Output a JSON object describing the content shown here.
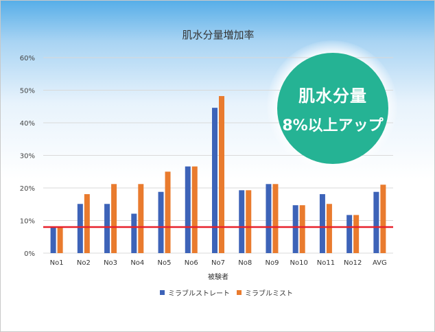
{
  "chart_data": {
    "type": "bar",
    "title": "肌水分量増加率",
    "xlabel": "被験者",
    "ylabel": "",
    "categories": [
      "No1",
      "No2",
      "No3",
      "No4",
      "No5",
      "No6",
      "No7",
      "No8",
      "No9",
      "No10",
      "No11",
      "No12",
      "AVG"
    ],
    "series": [
      {
        "name": "ミラブルストレート",
        "color": "#3d63b8",
        "values": [
          8.2,
          15.1,
          15.1,
          12.1,
          18.8,
          26.6,
          44.6,
          19.3,
          21.2,
          14.7,
          18.1,
          11.7,
          18.8
        ]
      },
      {
        "name": "ミラブルミスト",
        "color": "#e97b2e",
        "values": [
          8.2,
          18.1,
          21.2,
          21.2,
          25.0,
          26.6,
          48.2,
          19.3,
          21.2,
          14.7,
          15.1,
          11.7,
          21.0
        ]
      }
    ],
    "ylim": [
      0,
      60
    ],
    "yticks": [
      0,
      10,
      20,
      30,
      40,
      50,
      60
    ],
    "ytick_labels": [
      "0%",
      "10%",
      "20%",
      "30%",
      "40%",
      "50%",
      "60%"
    ],
    "reference_line": {
      "value": 8,
      "color": "#e8202a"
    },
    "grid": true,
    "legend": "bottom"
  },
  "badge": {
    "line1": "肌水分量",
    "line2": "8%以上アップ",
    "color": "#25b394"
  }
}
